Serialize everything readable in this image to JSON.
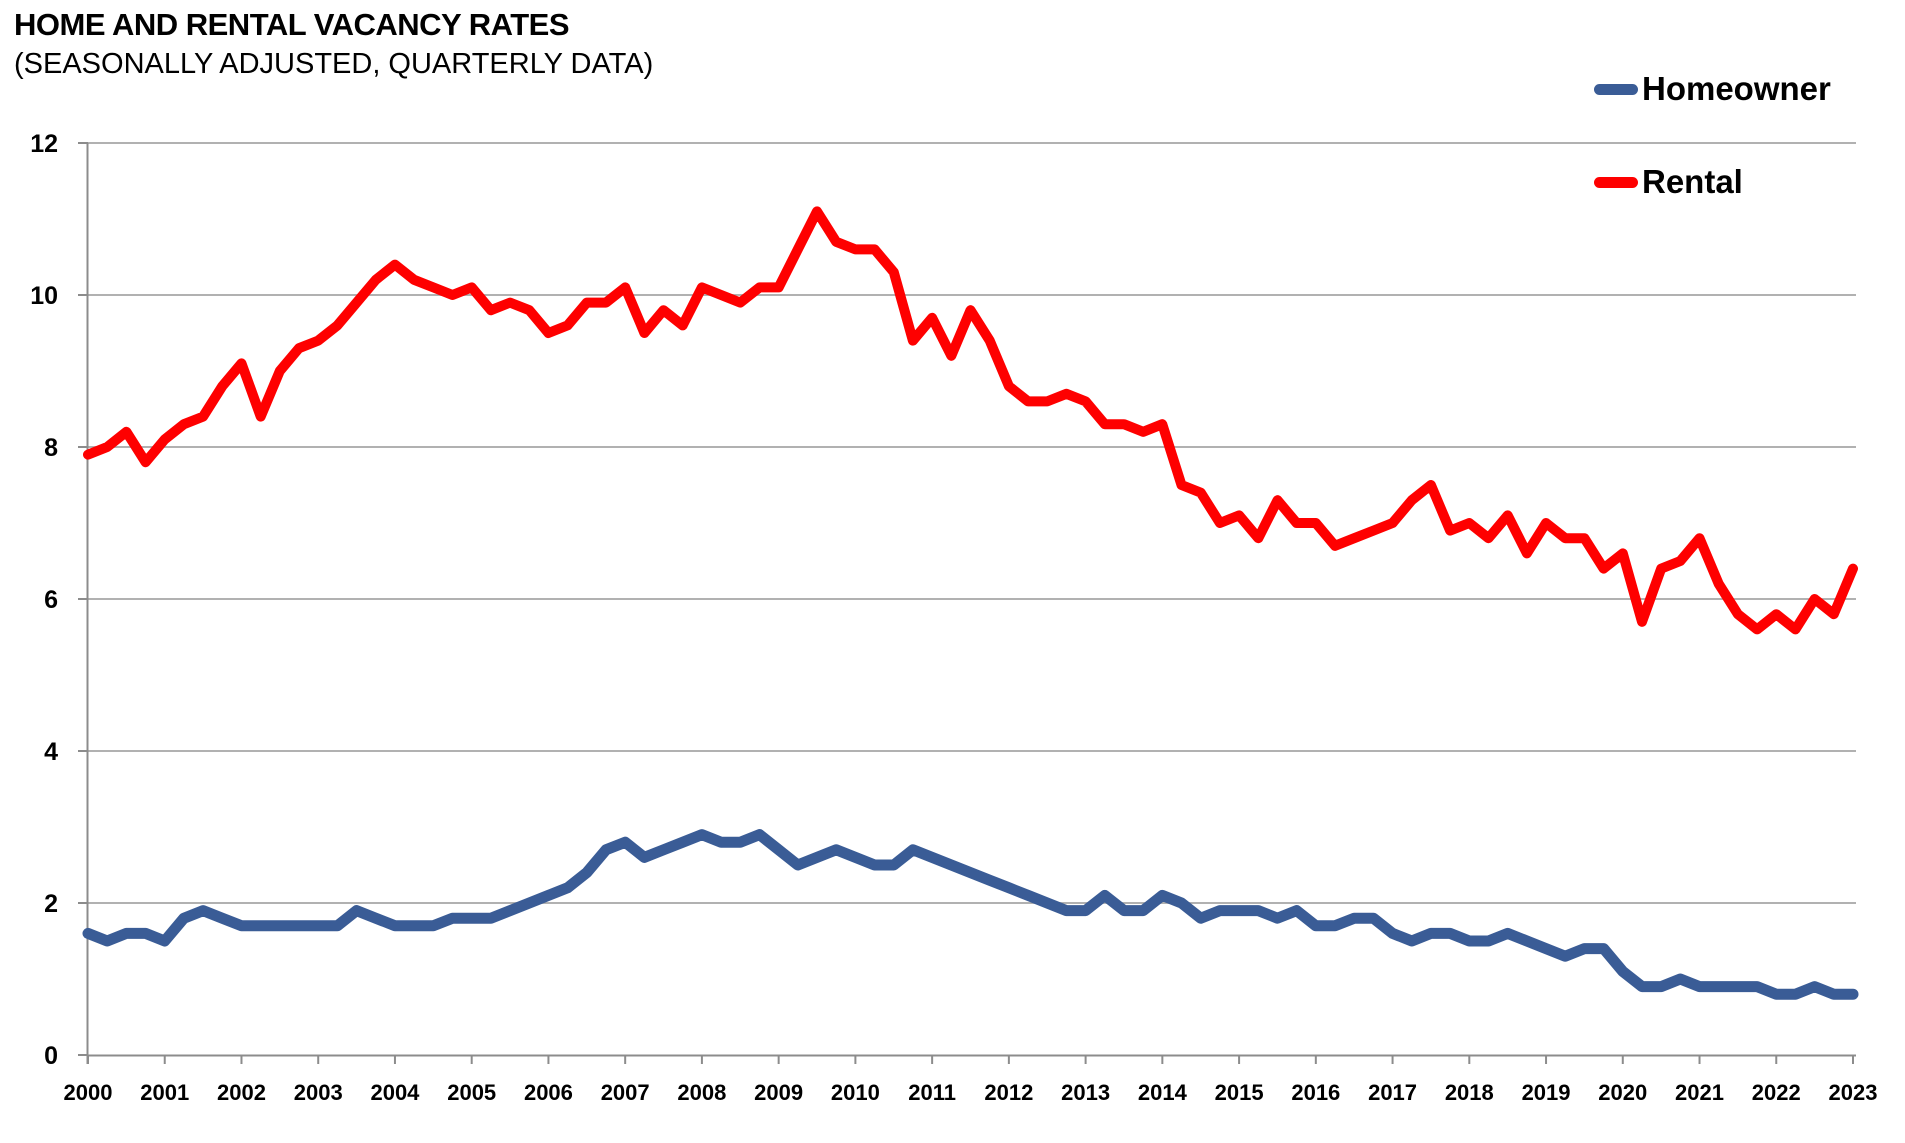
{
  "header": {
    "title": "HOME AND RENTAL VACANCY RATES",
    "subtitle": "(SEASONALLY ADJUSTED, QUARTERLY DATA)"
  },
  "chart_data": {
    "type": "line",
    "title": "HOME AND RENTAL VACANCY RATES",
    "subtitle": "(SEASONALLY ADJUSTED, QUARTERLY DATA)",
    "frequency": "quarterly",
    "x_start": "2000 Q1",
    "x_end": "2023 Q1",
    "x_tick_labels": [
      "2000",
      "2001",
      "2002",
      "2003",
      "2004",
      "2005",
      "2006",
      "2007",
      "2008",
      "2009",
      "2010",
      "2011",
      "2012",
      "2013",
      "2014",
      "2015",
      "2016",
      "2017",
      "2018",
      "2019",
      "2020",
      "2021",
      "2022",
      "2023"
    ],
    "y_ticks": [
      0,
      2,
      4,
      6,
      8,
      10,
      12
    ],
    "ylim": [
      0,
      12
    ],
    "grid": "horizontal",
    "legend_position": "top-right",
    "series": [
      {
        "name": "Homeowner",
        "color": "#3a5c96",
        "values": [
          1.6,
          1.5,
          1.6,
          1.6,
          1.5,
          1.8,
          1.9,
          1.8,
          1.7,
          1.7,
          1.7,
          1.7,
          1.7,
          1.7,
          1.9,
          1.8,
          1.7,
          1.7,
          1.7,
          1.8,
          1.8,
          1.8,
          1.9,
          2.0,
          2.1,
          2.2,
          2.4,
          2.7,
          2.8,
          2.6,
          2.7,
          2.8,
          2.9,
          2.8,
          2.8,
          2.9,
          2.7,
          2.5,
          2.6,
          2.7,
          2.6,
          2.5,
          2.5,
          2.7,
          2.6,
          2.5,
          2.4,
          2.3,
          2.2,
          2.1,
          2.0,
          1.9,
          1.9,
          2.1,
          1.9,
          1.9,
          2.1,
          2.0,
          1.8,
          1.9,
          1.9,
          1.9,
          1.8,
          1.9,
          1.7,
          1.7,
          1.8,
          1.8,
          1.6,
          1.5,
          1.6,
          1.6,
          1.5,
          1.5,
          1.6,
          1.5,
          1.4,
          1.3,
          1.4,
          1.4,
          1.1,
          0.9,
          0.9,
          1.0,
          0.9,
          0.9,
          0.9,
          0.9,
          0.8,
          0.8,
          0.9,
          0.8,
          0.8
        ]
      },
      {
        "name": "Rental",
        "color": "#fe0000",
        "values": [
          7.9,
          8.0,
          8.2,
          7.8,
          8.1,
          8.3,
          8.4,
          8.8,
          9.1,
          8.4,
          9.0,
          9.3,
          9.4,
          9.6,
          9.9,
          10.2,
          10.4,
          10.2,
          10.1,
          10.0,
          10.1,
          9.8,
          9.9,
          9.8,
          9.5,
          9.6,
          9.9,
          9.9,
          10.1,
          9.5,
          9.8,
          9.6,
          10.1,
          10.0,
          9.9,
          10.1,
          10.1,
          10.6,
          11.1,
          10.7,
          10.6,
          10.6,
          10.3,
          9.4,
          9.7,
          9.2,
          9.8,
          9.4,
          8.8,
          8.6,
          8.6,
          8.7,
          8.6,
          8.3,
          8.3,
          8.2,
          8.3,
          7.5,
          7.4,
          7.0,
          7.1,
          6.8,
          7.3,
          7.0,
          7.0,
          6.7,
          6.8,
          6.9,
          7.0,
          7.3,
          7.5,
          6.9,
          7.0,
          6.8,
          7.1,
          6.6,
          7.0,
          6.8,
          6.8,
          6.4,
          6.6,
          5.7,
          6.4,
          6.5,
          6.8,
          6.2,
          5.8,
          5.6,
          5.8,
          5.6,
          6.0,
          5.8,
          6.4
        ]
      }
    ]
  },
  "colors": {
    "grid": "#a6a6a6",
    "axis": "#8c8c8c",
    "text": "#000000",
    "background": "#ffffff"
  }
}
